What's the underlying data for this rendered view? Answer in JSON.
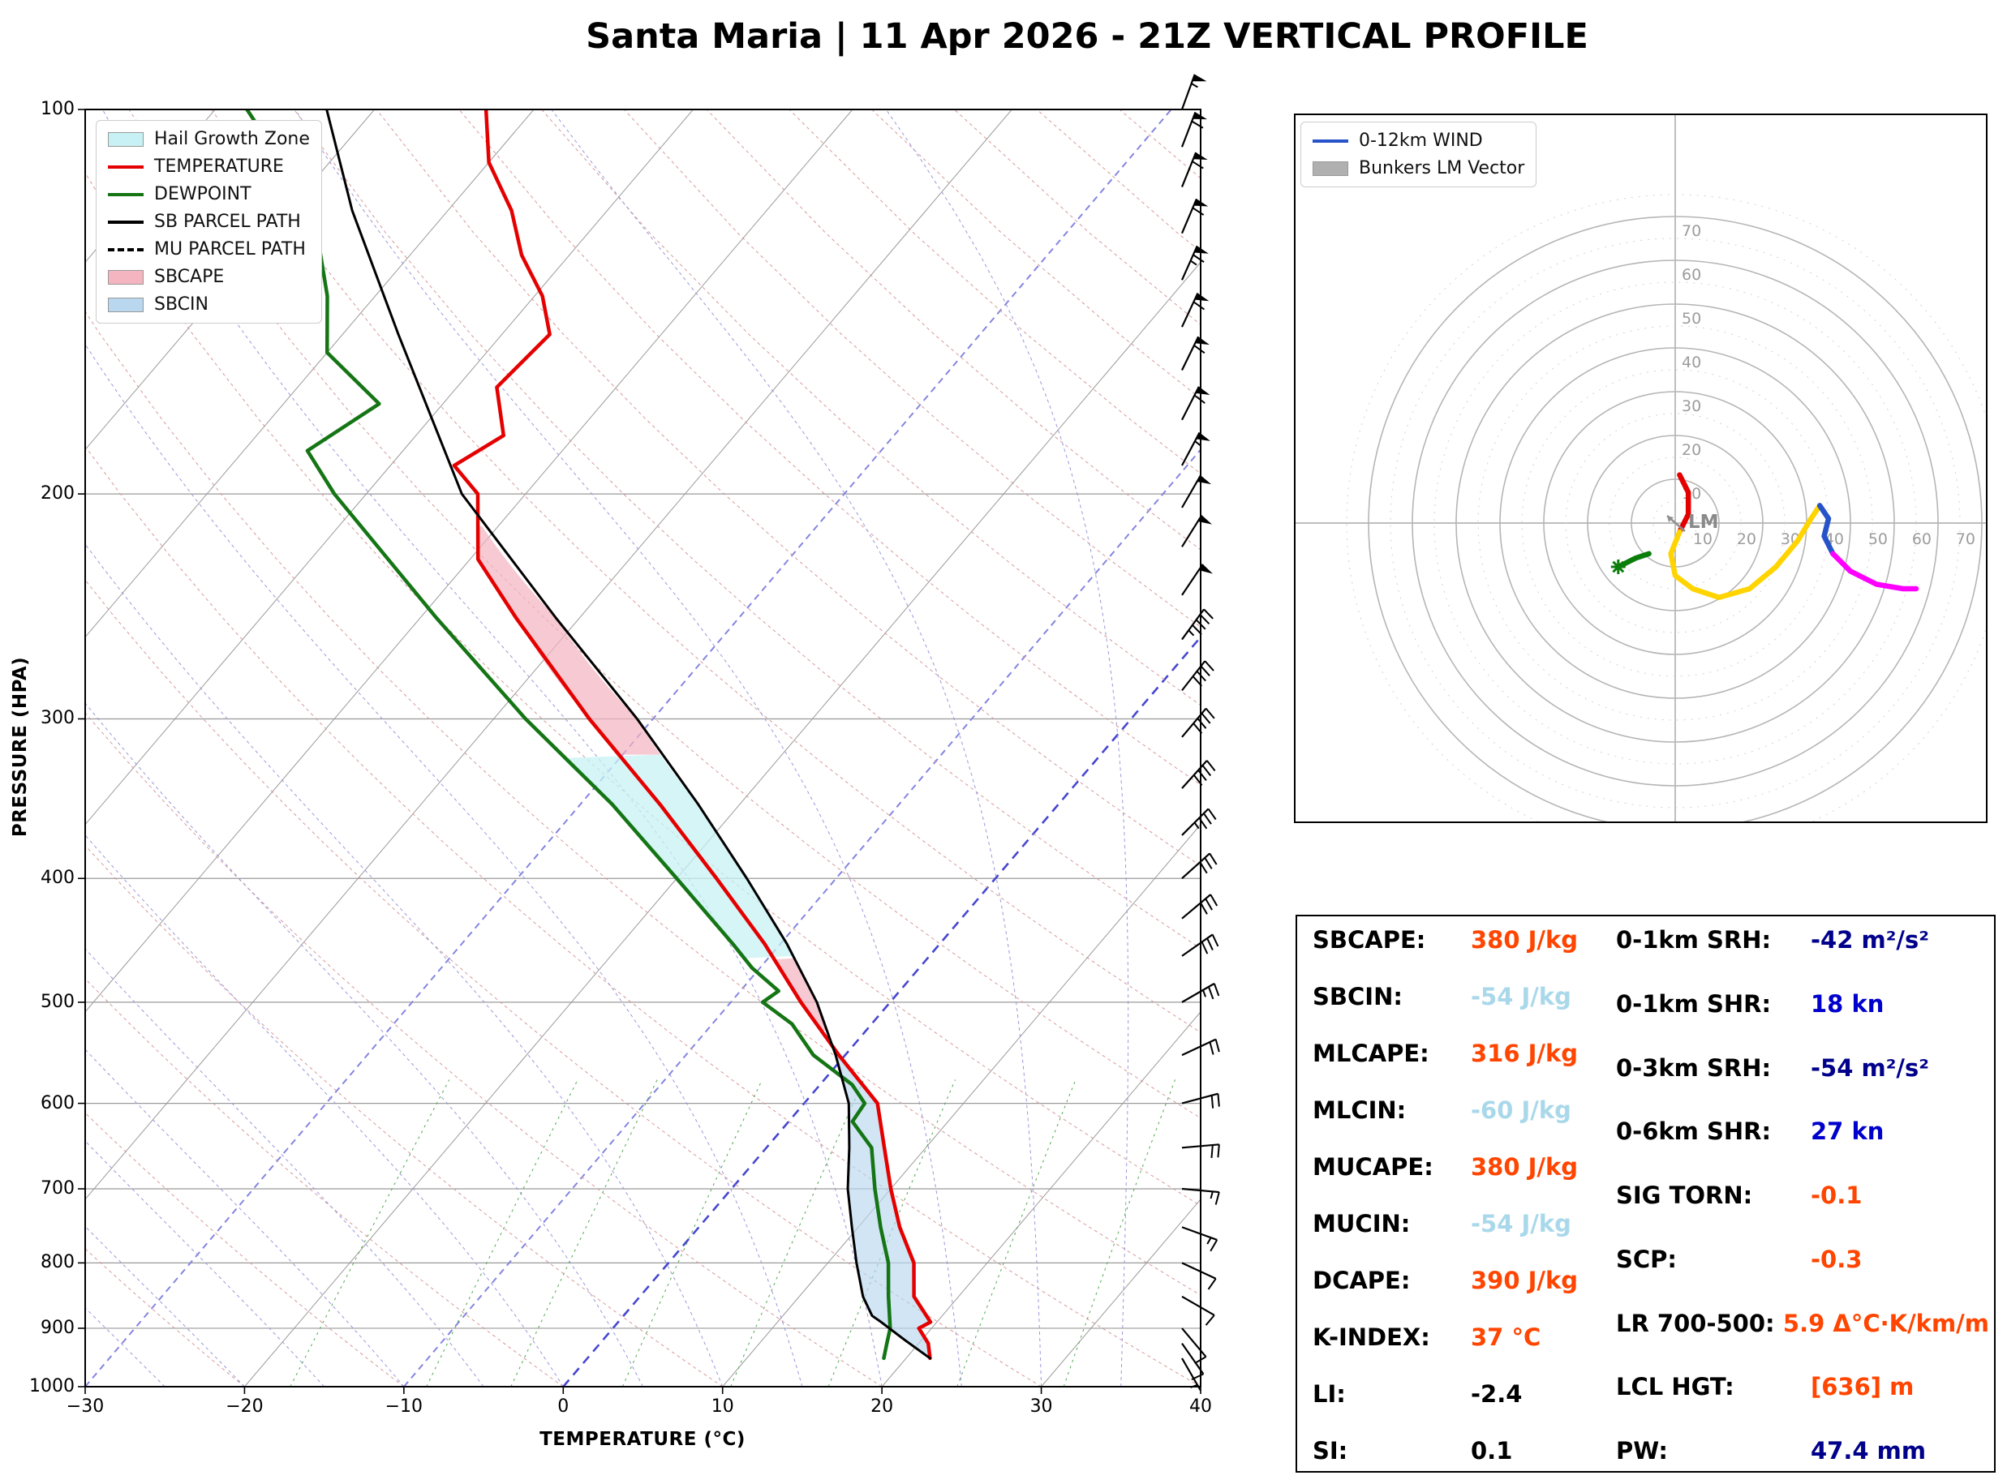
{
  "title": "Santa Maria | 11 Apr 2026 - 21Z VERTICAL PROFILE",
  "skewt": {
    "xlabel": "TEMPERATURE (°C)",
    "ylabel": "PRESSURE (HPA)",
    "x_ticks": [
      -30,
      -20,
      -10,
      0,
      10,
      20,
      30,
      40
    ],
    "p_ticks": [
      100,
      200,
      300,
      400,
      500,
      600,
      700,
      800,
      900,
      1000
    ],
    "legend": [
      {
        "label": "Hail Growth Zone",
        "swatch": "patch",
        "color": "#c7f1f4"
      },
      {
        "label": "TEMPERATURE",
        "swatch": "line",
        "color": "#e50000"
      },
      {
        "label": "DEWPOINT",
        "swatch": "line",
        "color": "#157515"
      },
      {
        "label": "SB PARCEL PATH",
        "swatch": "line",
        "color": "#000000"
      },
      {
        "label": "MU PARCEL PATH",
        "swatch": "dash",
        "color": "#000000"
      },
      {
        "label": "SBCAPE",
        "swatch": "patch",
        "color": "#f4b4c0"
      },
      {
        "label": "SBCIN",
        "swatch": "patch",
        "color": "#b9d7ee"
      }
    ]
  },
  "hodograph": {
    "legend": [
      {
        "label": "0-12km WIND",
        "swatch": "line",
        "color": "#2653c9"
      },
      {
        "label": "Bunkers LM Vector",
        "swatch": "patch",
        "color": "#b0b0b0"
      }
    ],
    "ring_labels": [
      10,
      20,
      30,
      40,
      50,
      60,
      70
    ],
    "lm_label": "LM"
  },
  "chart_data": [
    {
      "type": "line",
      "subtype": "skew-t-log-p",
      "title": "Vertical profile",
      "xlabel": "TEMPERATURE (°C)",
      "ylabel": "PRESSURE (HPA)",
      "xlim": [
        -30,
        40
      ],
      "pressure_range": [
        100,
        1000
      ],
      "series": [
        {
          "name": "TEMPERATURE",
          "color": "#e50000",
          "dashed": false,
          "points": [
            [
              950,
              21.5
            ],
            [
              925,
              20.6
            ],
            [
              900,
              19.2
            ],
            [
              890,
              19.6
            ],
            [
              850,
              17.2
            ],
            [
              800,
              15.4
            ],
            [
              750,
              12.6
            ],
            [
              700,
              10
            ],
            [
              650,
              7.4
            ],
            [
              600,
              4.6
            ],
            [
              550,
              -0.4
            ],
            [
              500,
              -5.6
            ],
            [
              450,
              -11
            ],
            [
              400,
              -17.5
            ],
            [
              350,
              -25
            ],
            [
              300,
              -34
            ],
            [
              250,
              -44
            ],
            [
              225,
              -49.5
            ],
            [
              200,
              -53
            ],
            [
              190,
              -56
            ],
            [
              180,
              -54.5
            ],
            [
              165,
              -57.5
            ],
            [
              150,
              -57
            ],
            [
              140,
              -59.5
            ],
            [
              130,
              -63
            ],
            [
              120,
              -66
            ],
            [
              110,
              -70
            ],
            [
              100,
              -73
            ]
          ]
        },
        {
          "name": "DEWPOINT",
          "color": "#157515",
          "dashed": false,
          "points": [
            [
              950,
              18.6
            ],
            [
              925,
              18
            ],
            [
              900,
              17.4
            ],
            [
              850,
              15.6
            ],
            [
              800,
              13.8
            ],
            [
              750,
              11.4
            ],
            [
              700,
              9
            ],
            [
              650,
              6.6
            ],
            [
              620,
              4
            ],
            [
              600,
              3.8
            ],
            [
              580,
              2
            ],
            [
              550,
              -2
            ],
            [
              520,
              -5
            ],
            [
              500,
              -8
            ],
            [
              490,
              -7.6
            ],
            [
              470,
              -10.5
            ],
            [
              450,
              -13
            ],
            [
              400,
              -20
            ],
            [
              350,
              -28
            ],
            [
              300,
              -38
            ],
            [
              250,
              -49
            ],
            [
              200,
              -62
            ],
            [
              185,
              -66
            ],
            [
              170,
              -64
            ],
            [
              155,
              -70
            ],
            [
              140,
              -73
            ],
            [
              125,
              -77
            ],
            [
              110,
              -83
            ],
            [
              100,
              -88
            ]
          ]
        },
        {
          "name": "SB PARCEL PATH",
          "color": "#000000",
          "dashed": false,
          "points": [
            [
              950,
              21.5
            ],
            [
              920,
              19
            ],
            [
              890,
              16.5
            ],
            [
              880,
              15.6
            ],
            [
              850,
              14
            ],
            [
              800,
              11.8
            ],
            [
              750,
              9.6
            ],
            [
              700,
              7.3
            ],
            [
              650,
              5.2
            ],
            [
              600,
              2.8
            ],
            [
              550,
              -0.6
            ],
            [
              500,
              -4.6
            ],
            [
              450,
              -9.6
            ],
            [
              400,
              -15.6
            ],
            [
              350,
              -22.6
            ],
            [
              300,
              -31
            ],
            [
              250,
              -41.5
            ],
            [
              200,
              -54
            ],
            [
              150,
              -66.5
            ],
            [
              120,
              -76
            ],
            [
              100,
              -83
            ]
          ]
        },
        {
          "name": "MU PARCEL PATH",
          "color": "#000000",
          "dashed": true,
          "points": [
            [
              950,
              21.5
            ],
            [
              920,
              19
            ],
            [
              890,
              16.5
            ],
            [
              880,
              15.6
            ],
            [
              850,
              14
            ],
            [
              800,
              11.8
            ],
            [
              750,
              9.6
            ],
            [
              700,
              7.3
            ],
            [
              650,
              5.2
            ],
            [
              600,
              2.8
            ],
            [
              550,
              -0.6
            ],
            [
              500,
              -4.6
            ],
            [
              450,
              -9.6
            ],
            [
              400,
              -15.6
            ],
            [
              350,
              -22.6
            ],
            [
              300,
              -31
            ],
            [
              250,
              -41.5
            ],
            [
              200,
              -54
            ],
            [
              150,
              -66.5
            ],
            [
              120,
              -76
            ],
            [
              100,
              -83
            ]
          ]
        }
      ],
      "fill_regions": [
        {
          "name": "SBCIN",
          "between": [
            "SB PARCEL PATH",
            "TEMPERATURE"
          ],
          "p_range": [
            950,
            527
          ],
          "color": "#b9d7ee",
          "opacity": 0.65
        },
        {
          "name": "SBCAPE lower",
          "between": [
            "TEMPERATURE",
            "SB PARCEL PATH"
          ],
          "p_range": [
            527,
            462
          ],
          "color": "#f4b4c0",
          "opacity": 0.7
        },
        {
          "name": "Hail Growth Zone",
          "between": [
            "DEWPOINT",
            "SB PARCEL PATH"
          ],
          "p_range": [
            462,
            320
          ],
          "color": "#c7f1f4",
          "opacity": 0.75
        },
        {
          "name": "SBCAPE upper",
          "between": [
            "TEMPERATURE",
            "SB PARCEL PATH"
          ],
          "p_range": [
            320,
            212
          ],
          "color": "#f4b4c0",
          "opacity": 0.7
        }
      ],
      "wind_barbs": {
        "units": "kn",
        "format": "[pressure_hpa, direction_deg_from, speed_kn]",
        "barbs": [
          [
            950,
            150,
            5
          ],
          [
            925,
            145,
            8
          ],
          [
            900,
            140,
            10
          ],
          [
            850,
            120,
            10
          ],
          [
            800,
            115,
            12
          ],
          [
            750,
            110,
            15
          ],
          [
            700,
            95,
            15
          ],
          [
            650,
            85,
            18
          ],
          [
            600,
            75,
            20
          ],
          [
            550,
            65,
            22
          ],
          [
            500,
            60,
            25
          ],
          [
            460,
            55,
            28
          ],
          [
            430,
            50,
            30
          ],
          [
            400,
            48,
            32
          ],
          [
            370,
            45,
            35
          ],
          [
            340,
            42,
            38
          ],
          [
            310,
            40,
            40
          ],
          [
            285,
            38,
            42
          ],
          [
            260,
            36,
            45
          ],
          [
            240,
            34,
            48
          ],
          [
            220,
            32,
            50
          ],
          [
            205,
            30,
            52
          ],
          [
            190,
            28,
            55
          ],
          [
            175,
            27,
            58
          ],
          [
            160,
            26,
            60
          ],
          [
            148,
            25,
            62
          ],
          [
            136,
            24,
            65
          ],
          [
            125,
            23,
            62
          ],
          [
            115,
            22,
            60
          ],
          [
            107,
            21,
            58
          ],
          [
            100,
            20,
            55
          ]
        ]
      }
    },
    {
      "type": "line",
      "subtype": "hodograph",
      "units": "kn",
      "ring_interval": 10,
      "ring_max": 70,
      "segments": [
        {
          "color": "#e50000",
          "points": [
            [
              1,
              11
            ],
            [
              3,
              7
            ],
            [
              3,
              2
            ],
            [
              1,
              -2
            ]
          ]
        },
        {
          "color": "#ffd400",
          "points": [
            [
              1,
              -2
            ],
            [
              -1,
              -7
            ],
            [
              0,
              -12
            ],
            [
              4,
              -15
            ],
            [
              10,
              -17
            ],
            [
              17,
              -15
            ],
            [
              23,
              -10
            ],
            [
              28,
              -4
            ],
            [
              31,
              1
            ],
            [
              33,
              4
            ]
          ]
        },
        {
          "color": "#2653c9",
          "points": [
            [
              33,
              4
            ],
            [
              35,
              1
            ],
            [
              34,
              -3
            ],
            [
              36,
              -7
            ]
          ]
        },
        {
          "color": "#ff00ff",
          "points": [
            [
              36,
              -7
            ],
            [
              40,
              -11
            ],
            [
              46,
              -14
            ],
            [
              52,
              -15
            ],
            [
              55,
              -15
            ]
          ]
        },
        {
          "color": "#0a7d0a",
          "points": [
            [
              -13,
              -10
            ],
            [
              -9,
              -8
            ],
            [
              -6,
              -7
            ]
          ]
        }
      ],
      "storm_motion_marker": {
        "color": "#0a7d0a",
        "u": -13,
        "v": -10
      },
      "lm_vector": {
        "label": "LM",
        "u": -3,
        "v": 2
      }
    },
    {
      "type": "table",
      "left": [
        {
          "key": "sbcape",
          "label": "SBCAPE:",
          "value": "380 J/kg",
          "color": "#ff4500"
        },
        {
          "key": "sbcin",
          "label": "SBCIN:",
          "value": "-54 J/kg",
          "color": "#a9d8ea"
        },
        {
          "key": "mlcape",
          "label": "MLCAPE:",
          "value": "316 J/kg",
          "color": "#ff4500"
        },
        {
          "key": "mlcin",
          "label": "MLCIN:",
          "value": "-60 J/kg",
          "color": "#a9d8ea"
        },
        {
          "key": "mucape",
          "label": "MUCAPE:",
          "value": "380 J/kg",
          "color": "#ff4500"
        },
        {
          "key": "mucin",
          "label": "MUCIN:",
          "value": "-54 J/kg",
          "color": "#a9d8ea"
        },
        {
          "key": "dcape",
          "label": "DCAPE:",
          "value": "390 J/kg",
          "color": "#ff4500"
        },
        {
          "key": "k-index",
          "label": "K-INDEX:",
          "value": "37 °C",
          "color": "#ff4500"
        },
        {
          "key": "li",
          "label": "LI:",
          "value": "-2.4",
          "color": "#000000"
        },
        {
          "key": "si",
          "label": "SI:",
          "value": "0.1",
          "color": "#000000"
        }
      ],
      "right": [
        {
          "key": "srh-0-1km",
          "label": "0-1km SRH:",
          "value": "-42 m²/s²",
          "color": "#00008b"
        },
        {
          "key": "shr-0-1km",
          "label": "0-1km SHR:",
          "value": "18 kn",
          "color": "#0000cd"
        },
        {
          "key": "srh-0-3km",
          "label": "0-3km SRH:",
          "value": "-54 m²/s²",
          "color": "#00008b"
        },
        {
          "key": "shr-0-6km",
          "label": "0-6km SHR:",
          "value": "27 kn",
          "color": "#0000cd"
        },
        {
          "key": "sig-torn",
          "label": "SIG TORN:",
          "value": "-0.1",
          "color": "#ff4500"
        },
        {
          "key": "scp",
          "label": "SCP:",
          "value": "-0.3",
          "color": "#ff4500"
        },
        {
          "key": "lr-700-500",
          "label": "LR 700-500:",
          "value": "5.9 Δ°C·K/km/m",
          "color": "#ff4500"
        },
        {
          "key": "lcl-hgt",
          "label": "LCL HGT:",
          "value": "[636] m",
          "color": "#ff4500"
        },
        {
          "key": "pw",
          "label": "PW:",
          "value": "47.4 mm",
          "color": "#00008b"
        }
      ]
    }
  ]
}
